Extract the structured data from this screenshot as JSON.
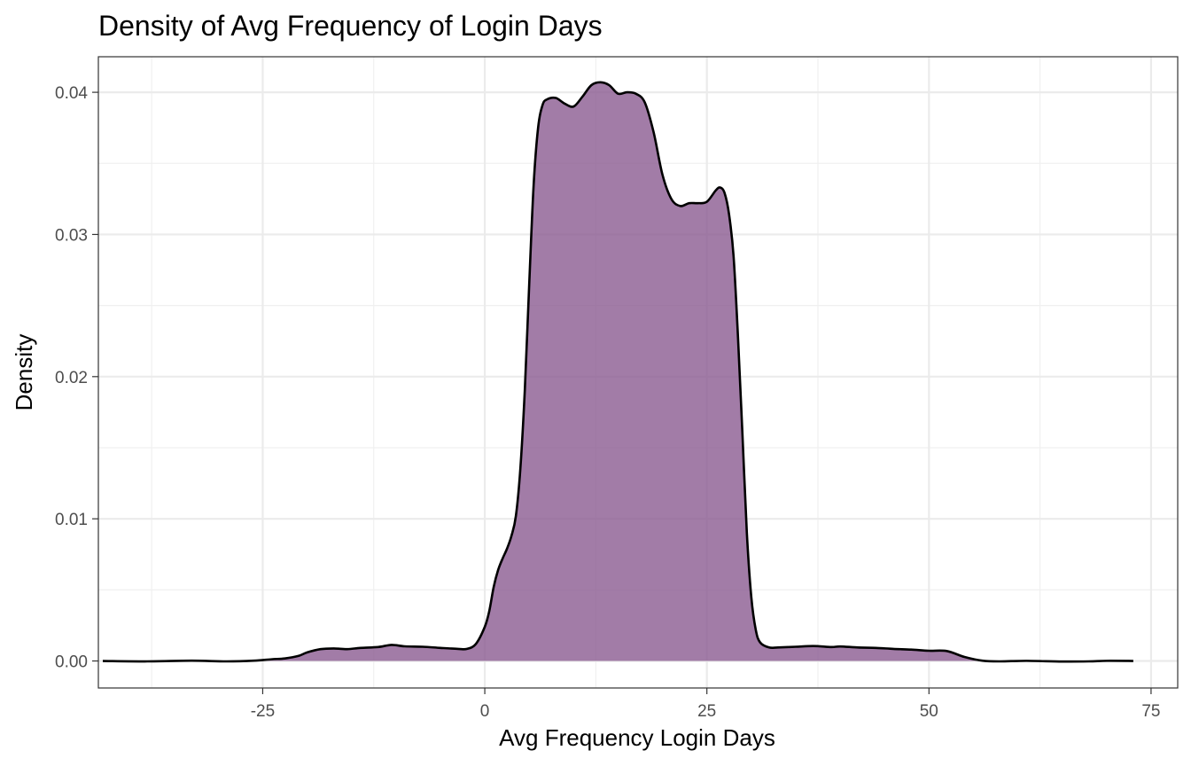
{
  "chart_data": {
    "type": "area",
    "kind": "density",
    "title": "Density of Avg Frequency of Login Days",
    "xlabel": "Avg Frequency Login Days",
    "ylabel": "Density",
    "xlim": [
      -43.5,
      78
    ],
    "ylim": [
      -0.0019,
      0.0425
    ],
    "x_ticks": [
      {
        "value": -25,
        "label": "-25"
      },
      {
        "value": 0,
        "label": "0"
      },
      {
        "value": 25,
        "label": "25"
      },
      {
        "value": 50,
        "label": "50"
      },
      {
        "value": 75,
        "label": "75"
      }
    ],
    "y_ticks": [
      {
        "value": 0.0,
        "label": "0.00"
      },
      {
        "value": 0.01,
        "label": "0.01"
      },
      {
        "value": 0.02,
        "label": "0.02"
      },
      {
        "value": 0.03,
        "label": "0.03"
      },
      {
        "value": 0.04,
        "label": "0.04"
      }
    ],
    "grid": true,
    "theme": "bw",
    "fill_color": "#8b5b91",
    "fill_opacity": 0.8,
    "line_color": "#000000",
    "x": [
      -43,
      -38,
      -33,
      -29,
      -26,
      -24,
      -22.5,
      -21,
      -20,
      -18.5,
      -17,
      -15.5,
      -14,
      -12,
      -10.5,
      -9,
      -7,
      -5,
      -3,
      -2,
      -1,
      0,
      0.5,
      1,
      1.5,
      2,
      2.5,
      3,
      3.5,
      4,
      4.5,
      5,
      5.5,
      6,
      6.5,
      7,
      8,
      9,
      10,
      11,
      12,
      13,
      14,
      15,
      16,
      17,
      18,
      19,
      20,
      21,
      22,
      23,
      24,
      25,
      26,
      26.5,
      27,
      27.5,
      28,
      28.5,
      29,
      29.5,
      30,
      30.5,
      31,
      32,
      33,
      35,
      37,
      39,
      40,
      42,
      44,
      46,
      48,
      50,
      52,
      54,
      56,
      58,
      61,
      65,
      68,
      70,
      73
    ],
    "y": [
      0.0,
      -3e-05,
      2e-05,
      -3e-05,
      2e-05,
      0.00012,
      0.00018,
      0.00035,
      0.0006,
      0.00083,
      0.00088,
      0.00083,
      0.00092,
      0.00098,
      0.00113,
      0.00103,
      0.001,
      0.00092,
      0.00085,
      0.00085,
      0.0012,
      0.0024,
      0.0035,
      0.0052,
      0.0064,
      0.0072,
      0.0079,
      0.0088,
      0.0102,
      0.0135,
      0.019,
      0.0265,
      0.0335,
      0.0375,
      0.0391,
      0.0395,
      0.0396,
      0.0392,
      0.039,
      0.0397,
      0.0405,
      0.0407,
      0.0405,
      0.0399,
      0.04,
      0.0399,
      0.0393,
      0.0372,
      0.0342,
      0.0325,
      0.032,
      0.0322,
      0.0322,
      0.0323,
      0.0331,
      0.0333,
      0.0329,
      0.0314,
      0.0285,
      0.0228,
      0.016,
      0.009,
      0.0045,
      0.0022,
      0.0013,
      0.00095,
      0.00095,
      0.001,
      0.00105,
      0.00098,
      0.00102,
      0.00095,
      0.00092,
      0.00085,
      0.0008,
      0.00072,
      0.0007,
      0.00028,
      2e-05,
      -3e-05,
      1e-05,
      -4e-05,
      -3e-05,
      1e-05,
      0.0
    ]
  }
}
